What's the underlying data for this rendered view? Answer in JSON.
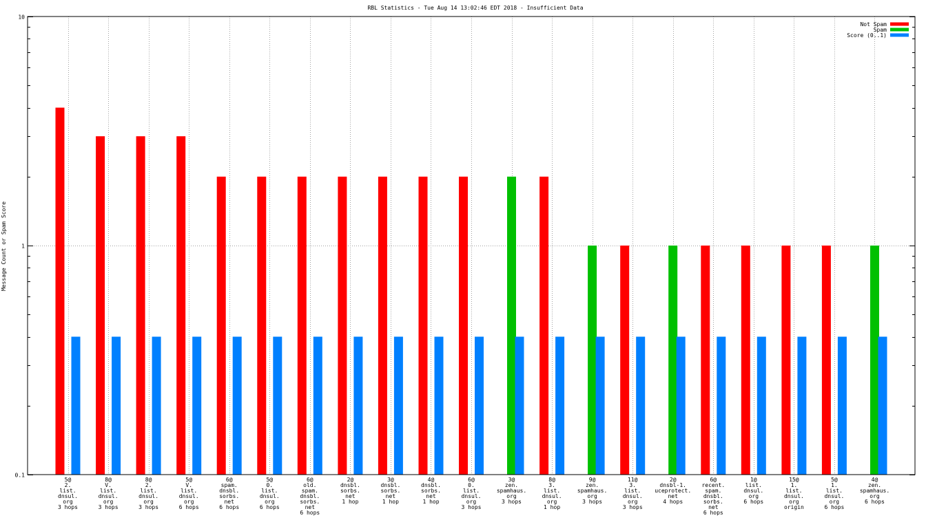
{
  "chart_data": {
    "type": "bar",
    "title": "RBL Statistics - Tue Aug 14 13:02:46 EDT 2018 - Insufficient Data",
    "xlabel": "",
    "ylabel": "Message Count or Spam Score",
    "y_scale": "log",
    "ylim": [
      0.1,
      10
    ],
    "y_ticks": [
      "0.1",
      "1",
      "10"
    ],
    "grid": true,
    "legend_position": "top-right",
    "categories": [
      [
        "5@",
        "2.",
        "list.",
        "dnsul.",
        "org",
        "3 hops"
      ],
      [
        "8@",
        "V.",
        "list.",
        "dnsul.",
        "org",
        "3 hops"
      ],
      [
        "8@",
        "2.",
        "list.",
        "dnsul.",
        "org",
        "3 hops"
      ],
      [
        "5@",
        "V.",
        "list.",
        "dnsul.",
        "org",
        "6 hops"
      ],
      [
        "6@",
        "spam.",
        "dnsbl.",
        "sorbs.",
        "net",
        "6 hops"
      ],
      [
        "5@",
        "0.",
        "list.",
        "dnsul.",
        "org",
        "6 hops"
      ],
      [
        "6@",
        "old.",
        "spam.",
        "dnsbl.",
        "sorbs.",
        "net",
        "6 hops"
      ],
      [
        "2@",
        "dnsbl.",
        "sorbs.",
        "net",
        "1 hop"
      ],
      [
        "3@",
        "dnsbl.",
        "sorbs.",
        "net",
        "1 hop"
      ],
      [
        "4@",
        "dnsbl.",
        "sorbs.",
        "net",
        "1 hop"
      ],
      [
        "6@",
        "0.",
        "list.",
        "dnsul.",
        "org",
        "3 hops"
      ],
      [
        "3@",
        "zen.",
        "spamhaus.",
        "org",
        "3 hops"
      ],
      [
        "8@",
        "3.",
        "list.",
        "dnsul.",
        "org",
        "1 hop"
      ],
      [
        "9@",
        "zen.",
        "spamhaus.",
        "org",
        "3 hops"
      ],
      [
        "11@",
        "3.",
        "list.",
        "dnsul.",
        "org",
        "3 hops"
      ],
      [
        "2@",
        "dnsbl-1.",
        "uceprotect.",
        "net",
        "4 hops"
      ],
      [
        "6@",
        "recent.",
        "spam.",
        "dnsbl.",
        "sorbs.",
        "net",
        "6 hops"
      ],
      [
        "1@",
        "list.",
        "dnsul.",
        "org",
        "6 hops"
      ],
      [
        "15@",
        "1.",
        "list.",
        "dnsul.",
        "org",
        "origin"
      ],
      [
        "5@",
        "1.",
        "list.",
        "dnsul.",
        "org",
        "6 hops"
      ],
      [
        "4@",
        "zen.",
        "spamhaus.",
        "org",
        "6 hops"
      ]
    ],
    "series": [
      {
        "name": "Not Spam",
        "color": "#ff0000",
        "values": [
          4,
          3,
          3,
          3,
          2,
          2,
          2,
          2,
          2,
          2,
          2,
          0,
          2,
          0,
          1,
          0,
          1,
          1,
          1,
          1,
          0
        ]
      },
      {
        "name": "Spam",
        "color": "#00c000",
        "values": [
          0,
          0,
          0,
          0,
          0,
          0,
          0,
          0,
          0,
          0,
          0,
          2,
          0,
          1,
          0,
          1,
          0,
          0,
          0,
          0,
          1
        ]
      },
      {
        "name": "Score (0..1)",
        "color": "#0080ff",
        "values": [
          0.4,
          0.4,
          0.4,
          0.4,
          0.4,
          0.4,
          0.4,
          0.4,
          0.4,
          0.4,
          0.4,
          0.4,
          0.4,
          0.4,
          0.4,
          0.4,
          0.4,
          0.4,
          0.4,
          0.4,
          0.4
        ]
      }
    ]
  }
}
